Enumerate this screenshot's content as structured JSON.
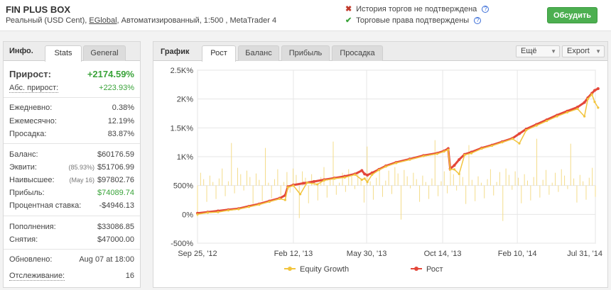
{
  "header": {
    "title": "FIN PLUS BOX",
    "subtitle_pre": "Реальный (USD Cent),",
    "subtitle_link": "EGlobal",
    "subtitle_post": ", Автоматизированный, 1:500 , MetaTrader 4",
    "status_history": "История торгов не подтверждена",
    "status_rights": "Торговые права подтверждены",
    "discuss_label": "Обсудить",
    "colors": {
      "accent": "#4caf50",
      "fail": "#c0392b",
      "ok": "#3aa33a"
    }
  },
  "left": {
    "tab_info": "Инфо.",
    "tab_stats": "Stats",
    "tab_general": "General",
    "growth_label": "Прирост:",
    "growth_value": "+2174.59%",
    "abs_label": "Абс. прирост:",
    "abs_value": "+223.93%",
    "daily_label": "Ежедневно:",
    "daily_value": "0.38%",
    "monthly_label": "Ежемесячно:",
    "monthly_value": "12.19%",
    "drawdown_label": "Просадка:",
    "drawdown_value": "83.87%",
    "balance_label": "Баланс:",
    "balance_value": "$60176.59",
    "equity_label": "Эквити:",
    "equity_note": "(85.93%)",
    "equity_value": "$51706.99",
    "highest_label": "Наивысшее:",
    "highest_note": "(May 16)",
    "highest_value": "$97802.76",
    "profit_label": "Прибыль:",
    "profit_value": "$74089.74",
    "interest_label": "Процентная ставка:",
    "interest_value": "-$4946.13",
    "deposits_label": "Пополнения:",
    "deposits_value": "$33086.85",
    "withdrawals_label": "Снятия:",
    "withdrawals_value": "$47000.00",
    "updated_label": "Обновлено:",
    "updated_value": "Aug 07 at 18:00",
    "tracking_label": "Отслеживание:",
    "tracking_value": "16"
  },
  "chart_panel": {
    "label": "График",
    "tabs": [
      "Рост",
      "Баланс",
      "Прибыль",
      "Просадка"
    ],
    "active_tab": "Рост",
    "more_label": "Ещё",
    "export_label": "Export"
  },
  "chart_data": {
    "type": "line",
    "yticks": [
      "2.5K%",
      "2K%",
      "1.5K%",
      "1K%",
      "500%",
      "0%",
      "-500%"
    ],
    "ytick_values": [
      2500,
      2000,
      1500,
      1000,
      500,
      0,
      -500
    ],
    "xticks": [
      "Sep 25, '12",
      "Feb 12, '13",
      "May 30, '13",
      "Oct 14, '13",
      "Feb 10, '14",
      "Jul 31, '14"
    ],
    "xtick_positions": [
      0,
      140,
      247,
      358,
      467,
      581
    ],
    "ylim": [
      -500,
      2500
    ],
    "x_span": 581,
    "series": [
      {
        "name": "Рост",
        "color": "#e4473a",
        "points": [
          [
            0,
            20
          ],
          [
            15,
            40
          ],
          [
            30,
            60
          ],
          [
            45,
            80
          ],
          [
            60,
            100
          ],
          [
            75,
            140
          ],
          [
            90,
            180
          ],
          [
            105,
            230
          ],
          [
            120,
            280
          ],
          [
            128,
            330
          ],
          [
            132,
            480
          ],
          [
            140,
            510
          ],
          [
            155,
            540
          ],
          [
            170,
            570
          ],
          [
            185,
            600
          ],
          [
            200,
            630
          ],
          [
            215,
            660
          ],
          [
            230,
            700
          ],
          [
            240,
            760
          ],
          [
            244,
            700
          ],
          [
            248,
            680
          ],
          [
            255,
            720
          ],
          [
            265,
            780
          ],
          [
            275,
            840
          ],
          [
            290,
            900
          ],
          [
            310,
            960
          ],
          [
            330,
            1020
          ],
          [
            350,
            1060
          ],
          [
            360,
            1100
          ],
          [
            366,
            1140
          ],
          [
            369,
            790
          ],
          [
            375,
            850
          ],
          [
            382,
            950
          ],
          [
            390,
            1040
          ],
          [
            400,
            1080
          ],
          [
            415,
            1150
          ],
          [
            430,
            1200
          ],
          [
            445,
            1260
          ],
          [
            460,
            1320
          ],
          [
            470,
            1400
          ],
          [
            480,
            1480
          ],
          [
            495,
            1560
          ],
          [
            510,
            1640
          ],
          [
            525,
            1720
          ],
          [
            540,
            1790
          ],
          [
            555,
            1860
          ],
          [
            565,
            1940
          ],
          [
            570,
            2020
          ],
          [
            576,
            2100
          ],
          [
            580,
            2150
          ],
          [
            585,
            2180
          ]
        ]
      },
      {
        "name": "Equity Growth",
        "color": "#f2c43d",
        "points": [
          [
            0,
            0
          ],
          [
            15,
            30
          ],
          [
            30,
            40
          ],
          [
            45,
            70
          ],
          [
            60,
            90
          ],
          [
            75,
            130
          ],
          [
            90,
            170
          ],
          [
            105,
            220
          ],
          [
            120,
            270
          ],
          [
            128,
            250
          ],
          [
            132,
            470
          ],
          [
            140,
            500
          ],
          [
            150,
            350
          ],
          [
            160,
            550
          ],
          [
            175,
            520
          ],
          [
            185,
            590
          ],
          [
            200,
            620
          ],
          [
            215,
            640
          ],
          [
            230,
            690
          ],
          [
            240,
            600
          ],
          [
            244,
            620
          ],
          [
            248,
            560
          ],
          [
            255,
            690
          ],
          [
            265,
            770
          ],
          [
            275,
            830
          ],
          [
            290,
            890
          ],
          [
            310,
            950
          ],
          [
            330,
            1010
          ],
          [
            350,
            1050
          ],
          [
            360,
            1090
          ],
          [
            366,
            1120
          ],
          [
            369,
            780
          ],
          [
            375,
            780
          ],
          [
            382,
            700
          ],
          [
            390,
            1030
          ],
          [
            400,
            1060
          ],
          [
            415,
            1140
          ],
          [
            430,
            1190
          ],
          [
            445,
            1250
          ],
          [
            460,
            1310
          ],
          [
            470,
            1230
          ],
          [
            480,
            1460
          ],
          [
            495,
            1540
          ],
          [
            510,
            1620
          ],
          [
            525,
            1700
          ],
          [
            540,
            1770
          ],
          [
            555,
            1830
          ],
          [
            565,
            1700
          ],
          [
            570,
            2000
          ],
          [
            576,
            2080
          ],
          [
            580,
            1950
          ],
          [
            585,
            1850
          ]
        ]
      }
    ],
    "legend": [
      "Equity Growth",
      "Рост"
    ],
    "grid": true,
    "legend_position": "bottom"
  }
}
